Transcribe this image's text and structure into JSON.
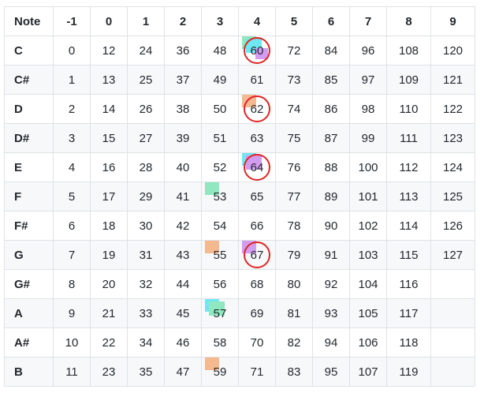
{
  "table": {
    "header": [
      "Note",
      "-1",
      "0",
      "1",
      "2",
      "3",
      "4",
      "5",
      "6",
      "7",
      "8",
      "9"
    ],
    "rows": [
      [
        "C",
        "0",
        "12",
        "24",
        "36",
        "48",
        "60",
        "72",
        "84",
        "96",
        "108",
        "120"
      ],
      [
        "C#",
        "1",
        "13",
        "25",
        "37",
        "49",
        "61",
        "73",
        "85",
        "97",
        "109",
        "121"
      ],
      [
        "D",
        "2",
        "14",
        "26",
        "38",
        "50",
        "62",
        "74",
        "86",
        "98",
        "110",
        "122"
      ],
      [
        "D#",
        "3",
        "15",
        "27",
        "39",
        "51",
        "63",
        "75",
        "87",
        "99",
        "111",
        "123"
      ],
      [
        "E",
        "4",
        "16",
        "28",
        "40",
        "52",
        "64",
        "76",
        "88",
        "100",
        "112",
        "124"
      ],
      [
        "F",
        "5",
        "17",
        "29",
        "41",
        "53",
        "65",
        "77",
        "89",
        "101",
        "113",
        "125"
      ],
      [
        "F#",
        "6",
        "18",
        "30",
        "42",
        "54",
        "66",
        "78",
        "90",
        "102",
        "114",
        "126"
      ],
      [
        "G",
        "7",
        "19",
        "31",
        "43",
        "55",
        "67",
        "79",
        "91",
        "103",
        "115",
        "127"
      ],
      [
        "G#",
        "8",
        "20",
        "32",
        "44",
        "56",
        "68",
        "80",
        "92",
        "104",
        "116",
        ""
      ],
      [
        "A",
        "9",
        "21",
        "33",
        "45",
        "57",
        "69",
        "81",
        "93",
        "105",
        "117",
        ""
      ],
      [
        "A#",
        "10",
        "22",
        "34",
        "46",
        "58",
        "70",
        "82",
        "94",
        "106",
        "118",
        ""
      ],
      [
        "B",
        "11",
        "23",
        "35",
        "47",
        "59",
        "71",
        "83",
        "95",
        "107",
        "119",
        ""
      ]
    ]
  },
  "colors": {
    "border": "#dfe2e5",
    "stripe": "#f6f8fa",
    "ring": "#e02424",
    "cyan": "#6fe7f2",
    "mint": "#8fe8bf",
    "orange": "#f4b98f",
    "purple": "#d29cf0"
  },
  "circled_values": [
    "60",
    "62",
    "64",
    "67"
  ],
  "highlights": [
    {
      "value": "60",
      "colors": [
        "mint",
        "cyan",
        "purple"
      ]
    },
    {
      "value": "62",
      "colors": [
        "orange"
      ]
    },
    {
      "value": "64",
      "colors": [
        "cyan",
        "purple"
      ]
    },
    {
      "value": "67",
      "colors": [
        "purple"
      ]
    },
    {
      "value": "53",
      "colors": [
        "mint"
      ]
    },
    {
      "value": "55",
      "colors": [
        "orange"
      ]
    },
    {
      "value": "57",
      "colors": [
        "cyan",
        "mint"
      ]
    },
    {
      "value": "59",
      "colors": [
        "orange"
      ]
    }
  ]
}
